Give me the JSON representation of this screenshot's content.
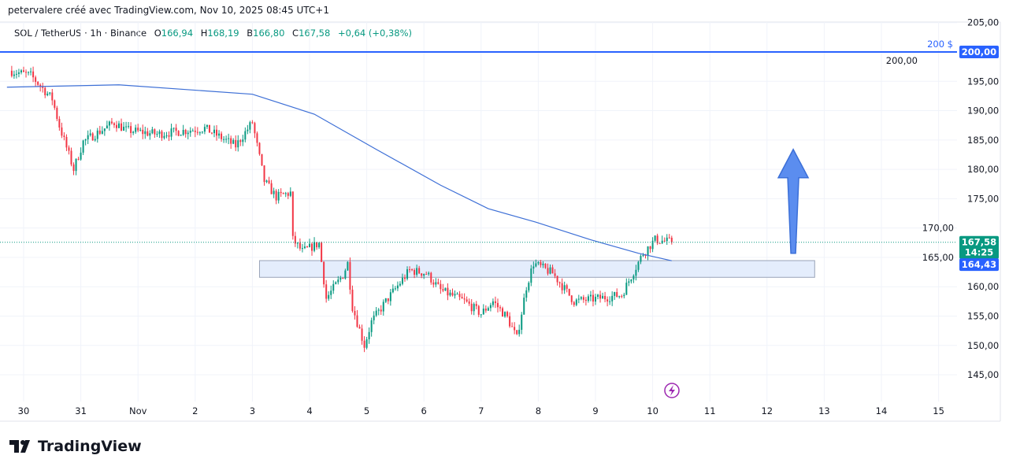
{
  "header": {
    "credit": "petervalere créé avec TradingView.com, Nov 10, 2025 08:45 UTC+1",
    "symbol": "SOL / TetherUS · 1h · Binance",
    "open_label": "O",
    "open": "166,94",
    "high_label": "H",
    "high": "168,19",
    "low_label": "B",
    "low": "166,80",
    "close_label": "C",
    "close": "167,58",
    "change": "+0,64 (+0,38%)"
  },
  "logo": {
    "text": "TradingView"
  },
  "chart_data": {
    "type": "candlestick",
    "timeframe": "1h",
    "y_ticks": [
      "145,00",
      "150,00",
      "155,00",
      "160,00",
      "165,00",
      "170,00",
      "175,00",
      "180,00",
      "185,00",
      "190,00",
      "195,00",
      "200,00",
      "205,00"
    ],
    "y_tick_values": [
      145,
      150,
      155,
      160,
      165,
      170,
      175,
      180,
      185,
      190,
      195,
      200,
      205
    ],
    "ylim": [
      142,
      207
    ],
    "x_ticks": [
      {
        "label": "30",
        "date": "2025-10-30"
      },
      {
        "label": "31",
        "date": "2025-10-31"
      },
      {
        "label": "Nov",
        "date": "2025-11-01"
      },
      {
        "label": "2",
        "date": "2025-11-02"
      },
      {
        "label": "3",
        "date": "2025-11-03"
      },
      {
        "label": "4",
        "date": "2025-11-04"
      },
      {
        "label": "5",
        "date": "2025-11-05"
      },
      {
        "label": "6",
        "date": "2025-11-06"
      },
      {
        "label": "7",
        "date": "2025-11-07"
      },
      {
        "label": "8",
        "date": "2025-11-08"
      },
      {
        "label": "9",
        "date": "2025-11-09"
      },
      {
        "label": "10",
        "date": "2025-11-10"
      },
      {
        "label": "11",
        "date": "2025-11-11"
      },
      {
        "label": "12",
        "date": "2025-11-12"
      },
      {
        "label": "13",
        "date": "2025-11-13"
      },
      {
        "label": "14",
        "date": "2025-11-14"
      },
      {
        "label": "15",
        "date": "2025-11-15"
      }
    ],
    "grid": true,
    "price_path_approx": [
      [
        "2025-10-29T18:00",
        196.8
      ],
      [
        "2025-10-30T03:00",
        196
      ],
      [
        "2025-10-30T12:00",
        192
      ],
      [
        "2025-10-30T15:00",
        187.4
      ],
      [
        "2025-10-30T21:00",
        180
      ],
      [
        "2025-10-31T01:00",
        184.7
      ],
      [
        "2025-10-31T14:00",
        188
      ],
      [
        "2025-10-31T19:00",
        186.7
      ],
      [
        "2025-11-01T08:00",
        186
      ],
      [
        "2025-11-02T04:00",
        187
      ],
      [
        "2025-11-02T17:00",
        184
      ],
      [
        "2025-11-03T00:00",
        188
      ],
      [
        "2025-11-03T05:00",
        178
      ],
      [
        "2025-11-03T10:00",
        175.3
      ],
      [
        "2025-11-03T16:00",
        176
      ],
      [
        "2025-11-03T17:00",
        168
      ],
      [
        "2025-11-03T21:00",
        166
      ],
      [
        "2025-11-04T04:00",
        167.4
      ],
      [
        "2025-11-04T07:00",
        158
      ],
      [
        "2025-11-04T14:00",
        162
      ],
      [
        "2025-11-04T16:00",
        164
      ],
      [
        "2025-11-04T18:00",
        156.6
      ],
      [
        "2025-11-04T23:00",
        150
      ],
      [
        "2025-11-05T02:00",
        154
      ],
      [
        "2025-11-05T08:00",
        157.5
      ],
      [
        "2025-11-05T18:00",
        162.8
      ],
      [
        "2025-11-06T01:00",
        162.3
      ],
      [
        "2025-11-06T07:00",
        159.4
      ],
      [
        "2025-11-06T17:00",
        157.5
      ],
      [
        "2025-11-07T00:00",
        155.4
      ],
      [
        "2025-11-07T05:00",
        157.5
      ],
      [
        "2025-11-07T11:00",
        154.7
      ],
      [
        "2025-11-07T15:00",
        151.2
      ],
      [
        "2025-11-07T19:00",
        160
      ],
      [
        "2025-11-07T22:00",
        164
      ],
      [
        "2025-11-08T06:00",
        162.3
      ],
      [
        "2025-11-08T15:00",
        157.5
      ],
      [
        "2025-11-09T01:00",
        158
      ],
      [
        "2025-11-09T11:00",
        158.6
      ],
      [
        "2025-11-09T16:00",
        162.6
      ],
      [
        "2025-11-09T20:00",
        165.7
      ],
      [
        "2025-11-10T01:00",
        168
      ],
      [
        "2025-11-10T08:00",
        167.58
      ]
    ],
    "moving_average": {
      "color": "#3d6fd6",
      "points": [
        [
          "2025-10-29T17:00",
          194
        ],
        [
          "2025-10-31T16:00",
          194.4
        ],
        [
          "2025-11-03T00:00",
          192.8
        ],
        [
          "2025-11-04T02:00",
          189.4
        ],
        [
          "2025-11-05T04:00",
          183.4
        ],
        [
          "2025-11-06T07:00",
          177.3
        ],
        [
          "2025-11-07T03:00",
          173.3
        ],
        [
          "2025-11-07T23:00",
          171
        ],
        [
          "2025-11-08T22:00",
          168
        ],
        [
          "2025-11-09T18:00",
          165.7
        ],
        [
          "2025-11-10T08:00",
          164.43
        ]
      ],
      "last_value": "164,43"
    },
    "current_price": {
      "value": 167.58,
      "label": "167,58",
      "countdown": "14:25"
    },
    "horizontal_line": {
      "value": 200,
      "label": "200 $",
      "axis_label": "200,00",
      "color": "#2962ff"
    },
    "zone": {
      "from": "2025-11-03T03:00",
      "to": "2025-11-12T20:00",
      "top": 164.45,
      "bottom": 161.6
    },
    "arrow": {
      "date": "2025-11-12T11:00",
      "from": 165.7,
      "to": 183.4,
      "direction": "up"
    },
    "colors": {
      "up": "#089981",
      "down": "#f23645",
      "ma": "#3d6fd6",
      "zone": "#dde8fb",
      "arrow": "#5b8def"
    }
  }
}
